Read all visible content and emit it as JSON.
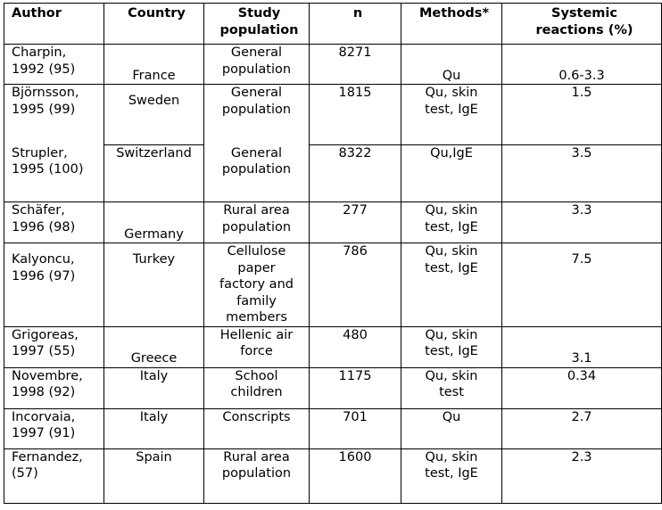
{
  "headers": {
    "author": "Author",
    "country": "Country",
    "study": [
      "Study",
      "population"
    ],
    "n": "n",
    "methods": "Methods*",
    "reactions": [
      "Systemic",
      "reactions (%)"
    ]
  },
  "rows": [
    {
      "author": [
        "Charpin,",
        "1992 (95)"
      ],
      "country": "France",
      "study": [
        "General",
        "population"
      ],
      "n": "8271",
      "methods": [
        "Qu"
      ],
      "reactions": "0.6-3.3"
    },
    {
      "author": [
        "Björnsson,",
        "1995 (99)"
      ],
      "country": "Sweden",
      "study": [
        "General",
        "population"
      ],
      "n": "1815",
      "methods": [
        "Qu, skin",
        "test, IgE"
      ],
      "reactions": "1.5"
    },
    {
      "author": [
        "Strupler,",
        "1995 (100)"
      ],
      "country": "Switzerland",
      "study": [
        "General",
        "population"
      ],
      "n": "8322",
      "methods": [
        "Qu,IgE"
      ],
      "reactions": "3.5"
    },
    {
      "author": [
        "Schäfer,",
        "1996 (98)"
      ],
      "country": "Germany",
      "study": [
        "Rural area",
        "population"
      ],
      "n": "277",
      "methods": [
        "Qu, skin",
        "test, IgE"
      ],
      "reactions": "3.3"
    },
    {
      "author": [
        "Kalyoncu,",
        "1996 (97)"
      ],
      "country": "Turkey",
      "study": [
        "Cellulose",
        "paper",
        "factory and",
        "family",
        "members"
      ],
      "n": "786",
      "methods": [
        "Qu, skin",
        "test, IgE"
      ],
      "reactions": "7.5"
    },
    {
      "author": [
        "Grigoreas,",
        "1997 (55)"
      ],
      "country": "Greece",
      "study": [
        "Hellenic air",
        "force"
      ],
      "n": "480",
      "methods": [
        "Qu, skin",
        "test, IgE"
      ],
      "reactions": "3.1"
    },
    {
      "author": [
        "Novembre,",
        "1998 (92)"
      ],
      "country": "Italy",
      "study": [
        "School",
        "children"
      ],
      "n": "1175",
      "methods": [
        "Qu, skin",
        "test"
      ],
      "reactions": "0.34"
    },
    {
      "author": [
        "Incorvaia,",
        "1997 (91)"
      ],
      "country": "Italy",
      "study": [
        "Conscripts"
      ],
      "n": "701",
      "methods": [
        "Qu"
      ],
      "reactions": "2.7"
    },
    {
      "author": [
        "Fernandez,",
        "(57)"
      ],
      "country": "Spain",
      "study": [
        "Rural area",
        "population"
      ],
      "n": "1600",
      "methods": [
        "Qu, skin",
        "test, IgE"
      ],
      "reactions": "2.3"
    }
  ]
}
